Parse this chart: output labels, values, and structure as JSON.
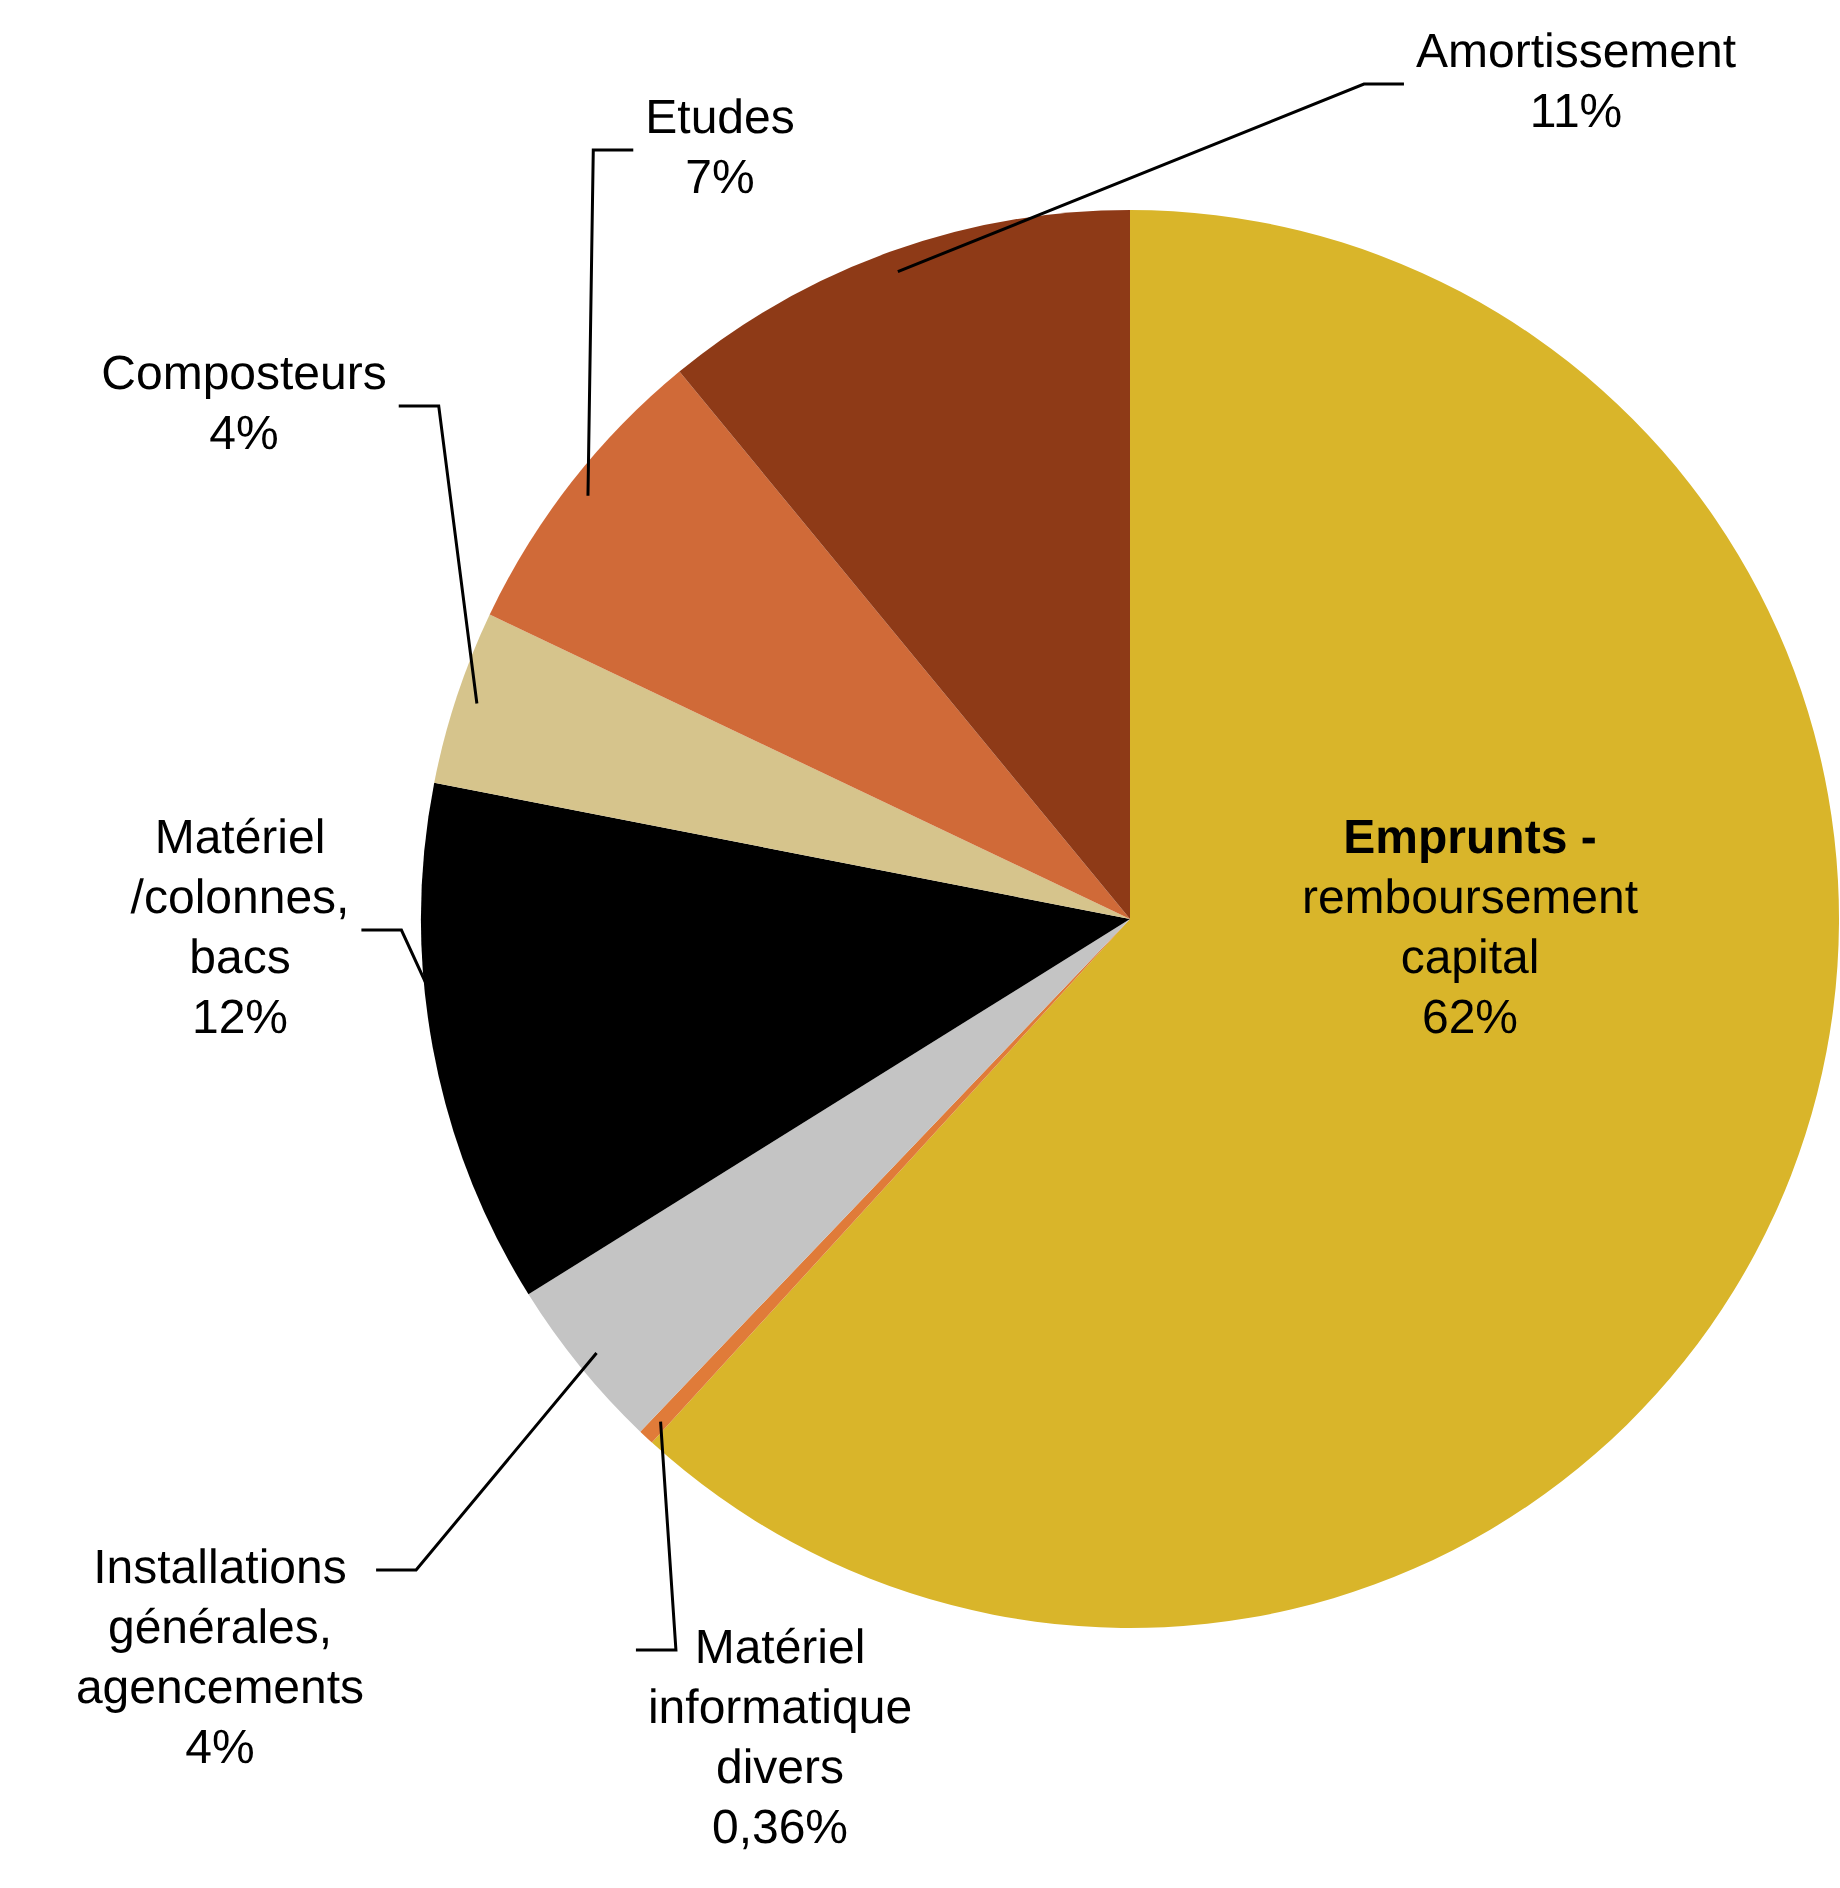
{
  "chart_data": {
    "type": "pie",
    "categories": [
      "Emprunts -\nremboursement\ncapital",
      "Matériel\ninformatique\ndivers",
      "Installations\ngénérales,\nagencements",
      "Matériel\n/colonnes,\nbacs",
      "Composteurs",
      "Etudes",
      "Amortissement"
    ],
    "values": [
      62,
      0.36,
      4,
      12,
      4,
      7,
      11
    ],
    "value_labels": [
      "62%",
      "0,36%",
      "4%",
      "12%",
      "4%",
      "7%",
      "11%"
    ],
    "colors": [
      "#d9b52a",
      "#e07b39",
      "#c4c4c4",
      "#000000",
      "#d6c48c",
      "#d06a38",
      "#8e3a17"
    ],
    "legend": false
  }
}
